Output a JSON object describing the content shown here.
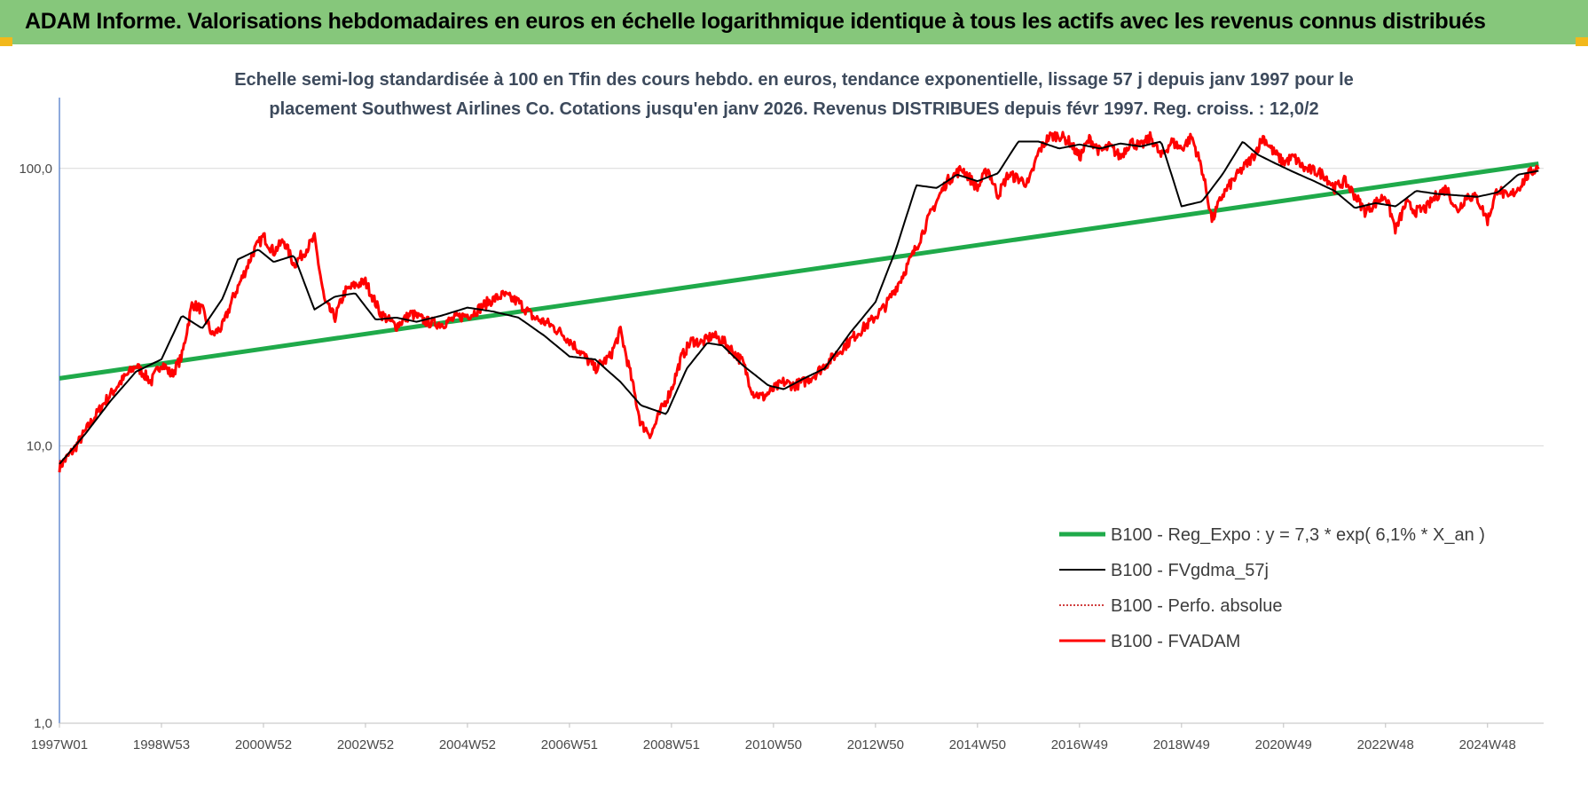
{
  "header": {
    "title": "ADAM Informe. Valorisations hebdomadaires en euros en échelle logarithmique identique à tous les actifs avec les revenus connus distribués"
  },
  "colors": {
    "header_bg": "#86c77b",
    "corner_accent": "#f2b81b",
    "regression": "#1faa4a",
    "fvadam": "#ff0000",
    "fvgdma": "#000000",
    "perfo": "#c00000",
    "grid": "#d9d9d9"
  },
  "chart_data": {
    "type": "line",
    "subtitle_line1": "Echelle semi-log standardisée à 100 en Tfin des cours hebdo. en euros, tendance exponentielle, lissage 57 j depuis janv 1997 pour le",
    "subtitle_line2": "placement Southwest Airlines Co. Cotations jusqu'en janv 2026.  Revenus DISTRIBUES depuis févr 1997.  Reg. croiss. : 12,0/2",
    "y_scale": "log",
    "ylim": [
      1,
      180
    ],
    "y_ticks": [
      {
        "value": 1,
        "label": "1,0"
      },
      {
        "value": 10,
        "label": "10,0"
      },
      {
        "value": 100,
        "label": "100,0"
      }
    ],
    "xlim": [
      1997.0,
      2026.1
    ],
    "x_ticks": [
      {
        "value": 1997.0,
        "label": "1997W01"
      },
      {
        "value": 1999.0,
        "label": "1998W53"
      },
      {
        "value": 2001.0,
        "label": "2000W52"
      },
      {
        "value": 2003.0,
        "label": "2002W52"
      },
      {
        "value": 2005.0,
        "label": "2004W52"
      },
      {
        "value": 2007.0,
        "label": "2006W51"
      },
      {
        "value": 2009.0,
        "label": "2008W51"
      },
      {
        "value": 2011.0,
        "label": "2010W50"
      },
      {
        "value": 2013.0,
        "label": "2012W50"
      },
      {
        "value": 2015.0,
        "label": "2014W50"
      },
      {
        "value": 2017.0,
        "label": "2016W49"
      },
      {
        "value": 2019.0,
        "label": "2018W49"
      },
      {
        "value": 2021.0,
        "label": "2020W49"
      },
      {
        "value": 2023.0,
        "label": "2022W48"
      },
      {
        "value": 2025.0,
        "label": "2024W48"
      }
    ],
    "grid": true,
    "legend_position": "bottom-right",
    "series": [
      {
        "name": "B100 - Reg_Expo : y = 7,3 * exp( 6,1% *  X_an )",
        "style": "regression",
        "x": [
          1997.0,
          2026.0
        ],
        "y": [
          17.5,
          104
        ]
      },
      {
        "name": "B100 - FVgdma_57j",
        "style": "smooth",
        "x": [
          1997.0,
          1997.5,
          1998.0,
          1998.5,
          1999.0,
          1999.4,
          1999.8,
          2000.2,
          2000.5,
          2000.9,
          2001.2,
          2001.6,
          2002.0,
          2002.4,
          2002.8,
          2003.2,
          2003.6,
          2004.0,
          2004.5,
          2005.0,
          2005.5,
          2006.0,
          2006.5,
          2007.0,
          2007.5,
          2008.0,
          2008.4,
          2008.9,
          2009.3,
          2009.7,
          2010.0,
          2010.4,
          2010.9,
          2011.2,
          2011.6,
          2012.0,
          2012.5,
          2013.0,
          2013.4,
          2013.8,
          2014.2,
          2014.6,
          2015.0,
          2015.4,
          2015.8,
          2016.2,
          2016.6,
          2017.0,
          2017.4,
          2017.8,
          2018.2,
          2018.6,
          2019.0,
          2019.4,
          2019.8,
          2020.2,
          2020.5,
          2020.9,
          2021.2,
          2021.6,
          2022.0,
          2022.4,
          2022.8,
          2023.2,
          2023.6,
          2024.0,
          2024.4,
          2024.8,
          2025.2,
          2025.6,
          2026.0
        ],
        "y": [
          8.6,
          11.0,
          14.5,
          18.5,
          20.5,
          29.5,
          26.5,
          34.0,
          47.0,
          51.0,
          46.0,
          48.5,
          31.0,
          34.5,
          35.5,
          28.5,
          29.0,
          28.0,
          29.5,
          31.5,
          30.5,
          29.0,
          25.0,
          21.0,
          20.5,
          17.0,
          14.0,
          13.0,
          19.0,
          23.5,
          23.0,
          19.5,
          16.5,
          16.0,
          17.5,
          19.0,
          25.5,
          33.0,
          51.0,
          87.0,
          85.0,
          95.0,
          90.0,
          96.0,
          125.0,
          125.0,
          118.0,
          122.0,
          118.0,
          123.0,
          120.0,
          125.0,
          73.0,
          76.0,
          95.0,
          125.0,
          112.0,
          103.0,
          97.0,
          90.0,
          83.0,
          72.0,
          75.0,
          73.0,
          83.0,
          81.0,
          80.0,
          79.0,
          82.0,
          95.0,
          98.0
        ]
      },
      {
        "name": "B100 - Perfo. absolue",
        "style": "dotted"
      },
      {
        "name": "B100 - FVADAM",
        "style": "raw",
        "x": [
          1997.0,
          1997.3,
          1997.6,
          1997.9,
          1998.2,
          1998.5,
          1998.8,
          1999.0,
          1999.2,
          1999.4,
          1999.6,
          1999.8,
          2000.0,
          2000.2,
          2000.4,
          2000.6,
          2000.8,
          2001.0,
          2001.2,
          2001.4,
          2001.6,
          2001.8,
          2002.0,
          2002.2,
          2002.4,
          2002.6,
          2002.8,
          2003.0,
          2003.3,
          2003.6,
          2003.9,
          2004.2,
          2004.5,
          2004.8,
          2005.1,
          2005.4,
          2005.7,
          2006.0,
          2006.3,
          2006.6,
          2006.9,
          2007.2,
          2007.5,
          2007.8,
          2008.0,
          2008.2,
          2008.4,
          2008.6,
          2008.8,
          2009.0,
          2009.2,
          2009.4,
          2009.6,
          2009.8,
          2010.0,
          2010.2,
          2010.4,
          2010.6,
          2010.8,
          2011.0,
          2011.2,
          2011.4,
          2011.6,
          2011.8,
          2012.0,
          2012.3,
          2012.6,
          2012.9,
          2013.2,
          2013.5,
          2013.8,
          2014.1,
          2014.4,
          2014.7,
          2015.0,
          2015.2,
          2015.4,
          2015.6,
          2015.8,
          2016.0,
          2016.2,
          2016.4,
          2016.6,
          2016.8,
          2017.0,
          2017.2,
          2017.4,
          2017.6,
          2017.8,
          2018.0,
          2018.2,
          2018.4,
          2018.6,
          2018.8,
          2019.0,
          2019.2,
          2019.4,
          2019.6,
          2019.8,
          2020.0,
          2020.2,
          2020.4,
          2020.6,
          2020.8,
          2021.0,
          2021.2,
          2021.4,
          2021.6,
          2021.8,
          2022.0,
          2022.2,
          2022.4,
          2022.6,
          2022.8,
          2023.0,
          2023.2,
          2023.4,
          2023.6,
          2023.8,
          2024.0,
          2024.2,
          2024.4,
          2024.6,
          2024.8,
          2025.0,
          2025.2,
          2025.4,
          2025.6,
          2025.8,
          2026.0
        ],
        "y": [
          8.4,
          9.8,
          12.0,
          14.5,
          17.0,
          19.5,
          17.0,
          20.0,
          18.0,
          21.0,
          32.5,
          31.0,
          25.0,
          27.0,
          34.0,
          41.0,
          50.0,
          57.0,
          50.0,
          55.0,
          45.0,
          50.0,
          56.0,
          33.0,
          29.0,
          36.0,
          38.0,
          39.0,
          30.0,
          27.0,
          30.0,
          28.0,
          27.5,
          29.0,
          30.0,
          33.0,
          35.0,
          33.0,
          29.0,
          27.5,
          25.0,
          22.0,
          19.0,
          21.0,
          26.0,
          18.0,
          12.0,
          11.0,
          13.5,
          16.0,
          21.0,
          24.0,
          23.5,
          25.0,
          24.0,
          22.0,
          20.0,
          15.5,
          15.0,
          16.0,
          17.0,
          16.5,
          17.0,
          18.0,
          19.5,
          22.0,
          25.0,
          28.0,
          32.0,
          40.0,
          52.0,
          70.0,
          90.0,
          100.0,
          85.0,
          100.0,
          80.0,
          95.0,
          92.0,
          88.0,
          115.0,
          130.0,
          132.0,
          125.0,
          110.0,
          128.0,
          115.0,
          120.0,
          110.0,
          125.0,
          120.0,
          130.0,
          110.0,
          125.0,
          118.0,
          130.0,
          100.0,
          65.0,
          80.0,
          90.0,
          100.0,
          110.0,
          130.0,
          115.0,
          105.0,
          110.0,
          100.0,
          98.0,
          95.0,
          85.0,
          90.0,
          80.0,
          70.0,
          75.0,
          80.0,
          60.0,
          75.0,
          70.0,
          72.0,
          80.0,
          85.0,
          70.0,
          80.0,
          78.0,
          65.0,
          85.0,
          78.0,
          85.0,
          95.0,
          102.0
        ]
      }
    ]
  }
}
